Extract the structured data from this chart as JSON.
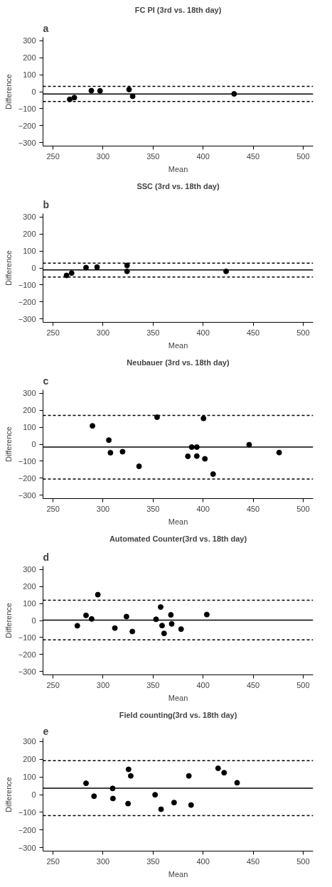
{
  "chart_data": [
    {
      "type": "scatter",
      "title": "FC PI (3rd vs. 18th day)",
      "annotations": [
        "a"
      ],
      "xlabel": "Mean",
      "ylabel": "Difference",
      "marker": "circle",
      "grid": false,
      "xlim": [
        240,
        510
      ],
      "ylim": [
        -320,
        320
      ],
      "xticks": [
        250,
        300,
        350,
        400,
        450,
        500
      ],
      "yticks": [
        -300,
        -200,
        -100,
        0,
        100,
        200,
        300
      ],
      "series": [
        {
          "color": "#000000",
          "x": [
            266.7,
            271.3,
            288.3,
            297,
            326,
            329.6,
            431
          ],
          "values": [
            -45,
            -35,
            6,
            5,
            13,
            -27,
            -13
          ]
        }
      ],
      "ref_lines": [
        {
          "axis": "y",
          "value": 31,
          "line_style": "dashed"
        },
        {
          "axis": "y",
          "value": -14,
          "line_style": "solid"
        },
        {
          "axis": "y",
          "value": -57,
          "line_style": "dashed"
        }
      ]
    },
    {
      "type": "scatter",
      "title": "SSC (3rd vs. 18th day)",
      "annotations": [
        "b"
      ],
      "xlabel": "Mean",
      "ylabel": "Difference",
      "marker": "circle",
      "grid": false,
      "xlim": [
        240,
        510
      ],
      "ylim": [
        -320,
        320
      ],
      "xticks": [
        250,
        300,
        350,
        400,
        450,
        500
      ],
      "yticks": [
        -300,
        -200,
        -100,
        0,
        100,
        200,
        300
      ],
      "series": [
        {
          "color": "#000000",
          "x": [
            263.5,
            268.6,
            283,
            294,
            324,
            324,
            423
          ],
          "values": [
            -44,
            -30,
            2,
            5,
            15,
            -20,
            -20
          ]
        }
      ],
      "ref_lines": [
        {
          "axis": "y",
          "value": 28,
          "line_style": "dashed"
        },
        {
          "axis": "y",
          "value": -12,
          "line_style": "solid"
        },
        {
          "axis": "y",
          "value": -53,
          "line_style": "dashed"
        }
      ]
    },
    {
      "type": "scatter",
      "title": "Neubauer (3rd vs. 18th day)",
      "annotations": [
        "c"
      ],
      "xlabel": "Mean",
      "ylabel": "Difference",
      "marker": "circle",
      "grid": false,
      "xlim": [
        240,
        510
      ],
      "ylim": [
        -320,
        320
      ],
      "xticks": [
        250,
        300,
        350,
        400,
        450,
        500
      ],
      "yticks": [
        -300,
        -200,
        -100,
        0,
        100,
        200,
        300
      ],
      "series": [
        {
          "color": "#000000",
          "x": [
            289.4,
            305.8,
            307.4,
            319.5,
            336,
            354,
            384.8,
            388.6,
            393.7,
            393.7,
            400.4,
            401.8,
            410,
            446,
            476
          ],
          "values": [
            108,
            24,
            -50,
            -44,
            -130,
            159,
            -71,
            -17,
            -17,
            -70,
            152,
            -86,
            -176,
            -3,
            -49
          ]
        }
      ],
      "ref_lines": [
        {
          "axis": "y",
          "value": 169,
          "line_style": "dashed"
        },
        {
          "axis": "y",
          "value": -17,
          "line_style": "solid"
        },
        {
          "axis": "y",
          "value": -205,
          "line_style": "dashed"
        }
      ]
    },
    {
      "type": "scatter",
      "title": "Automated Counter(3rd vs. 18th day)",
      "annotations": [
        "d"
      ],
      "xlabel": "Mean",
      "ylabel": "Difference",
      "marker": "circle",
      "grid": false,
      "xlim": [
        240,
        510
      ],
      "ylim": [
        -320,
        320
      ],
      "xticks": [
        250,
        300,
        350,
        400,
        450,
        500
      ],
      "yticks": [
        -300,
        -200,
        -100,
        0,
        100,
        200,
        300
      ],
      "series": [
        {
          "color": "#000000",
          "x": [
            274.3,
            283,
            288.6,
            294.8,
            311.8,
            323.4,
            329.3,
            353,
            357.6,
            359,
            361,
            367.8,
            368.6,
            378,
            403.7
          ],
          "values": [
            -31,
            30,
            9,
            152,
            -45,
            23,
            -65,
            7,
            79,
            -30,
            -76,
            33,
            -20,
            -51,
            35
          ]
        }
      ],
      "ref_lines": [
        {
          "axis": "y",
          "value": 119,
          "line_style": "dashed"
        },
        {
          "axis": "y",
          "value": 2,
          "line_style": "solid"
        },
        {
          "axis": "y",
          "value": -114,
          "line_style": "dashed"
        }
      ]
    },
    {
      "type": "scatter",
      "title": "Field counting(3rd vs. 18th day)",
      "annotations": [
        "e"
      ],
      "xlabel": "Mean",
      "ylabel": "Difference",
      "marker": "circle",
      "grid": false,
      "xlim": [
        240,
        510
      ],
      "ylim": [
        -320,
        320
      ],
      "xticks": [
        250,
        300,
        350,
        400,
        450,
        500
      ],
      "yticks": [
        -300,
        -200,
        -100,
        0,
        100,
        200,
        300
      ],
      "series": [
        {
          "color": "#000000",
          "x": [
            283,
            291,
            309.6,
            309.9,
            325,
            325.5,
            327.7,
            352,
            358,
            371,
            385.8,
            388,
            415,
            421,
            434
          ],
          "values": [
            64,
            -9,
            35,
            -22,
            -51,
            143,
            106,
            -1,
            -83,
            -45,
            106,
            -59,
            149,
            124,
            67
          ]
        }
      ],
      "ref_lines": [
        {
          "axis": "y",
          "value": 192,
          "line_style": "dashed"
        },
        {
          "axis": "y",
          "value": 36,
          "line_style": "solid"
        },
        {
          "axis": "y",
          "value": -119,
          "line_style": "dashed"
        }
      ]
    }
  ]
}
